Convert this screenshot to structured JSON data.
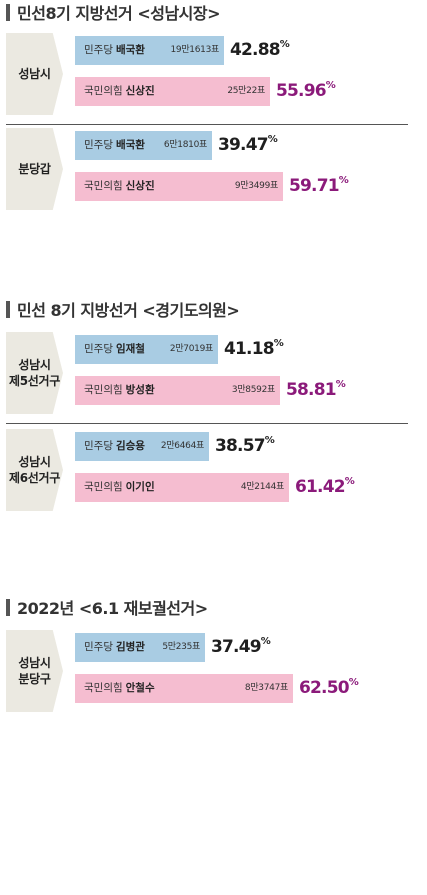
{
  "chart_data": [
    {
      "type": "bar",
      "title": "민선8기 지방선거 <성남시장>",
      "groups": [
        {
          "region": "성남시",
          "candidates": [
            {
              "party": "민주당",
              "name": "배국환",
              "votes": "19만1613표",
              "percent": 42.88,
              "percent_label": "42.88",
              "winner": false
            },
            {
              "party": "국민의힘",
              "name": "신상진",
              "votes": "25만22표",
              "percent": 55.96,
              "percent_label": "55.96",
              "winner": true
            }
          ]
        },
        {
          "region": "분당갑",
          "candidates": [
            {
              "party": "민주당",
              "name": "배국환",
              "votes": "6만1810표",
              "percent": 39.47,
              "percent_label": "39.47",
              "winner": false
            },
            {
              "party": "국민의힘",
              "name": "신상진",
              "votes": "9만3499표",
              "percent": 59.71,
              "percent_label": "59.71",
              "winner": true
            }
          ]
        }
      ]
    },
    {
      "type": "bar",
      "title": "민선 8기 지방선거 <경기도의원>",
      "groups": [
        {
          "region": "성남시\n제5선거구",
          "candidates": [
            {
              "party": "민주당",
              "name": "임재철",
              "votes": "2만7019표",
              "percent": 41.18,
              "percent_label": "41.18",
              "winner": false
            },
            {
              "party": "국민의힘",
              "name": "방성환",
              "votes": "3만8592표",
              "percent": 58.81,
              "percent_label": "58.81",
              "winner": true
            }
          ]
        },
        {
          "region": "성남시\n제6선거구",
          "candidates": [
            {
              "party": "민주당",
              "name": "김승용",
              "votes": "2만6464표",
              "percent": 38.57,
              "percent_label": "38.57",
              "winner": false
            },
            {
              "party": "국민의힘",
              "name": "이기인",
              "votes": "4만2144표",
              "percent": 61.42,
              "percent_label": "61.42",
              "winner": true
            }
          ]
        }
      ]
    },
    {
      "type": "bar",
      "title": "2022년 <6.1 재보궐선거>",
      "groups": [
        {
          "region": "성남시\n분당구",
          "candidates": [
            {
              "party": "민주당",
              "name": "김병관",
              "votes": "5만235표",
              "percent": 37.49,
              "percent_label": "37.49",
              "winner": false
            },
            {
              "party": "국민의힘",
              "name": "안철수",
              "votes": "8만3747표",
              "percent": 62.5,
              "percent_label": "62.50",
              "winner": true
            }
          ]
        }
      ]
    }
  ],
  "percent_symbol": "%",
  "colors": {
    "dem_bar": "#a9cce3",
    "ppp_bar": "#f5bdd0",
    "winner_text": "#8b1a7a",
    "region_bg": "#ebe9e1"
  }
}
